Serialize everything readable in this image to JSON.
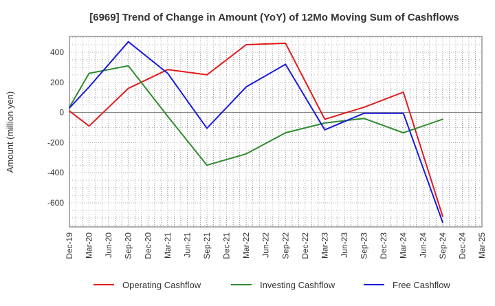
{
  "chart_data": {
    "type": "line",
    "title": "[6969]  Trend of Change in Amount (YoY) of 12Mo Moving Sum of Cashflows",
    "xlabel": "",
    "ylabel": "Amount (million yen)",
    "categories": [
      "Dec-19",
      "Mar-20",
      "Jun-20",
      "Sep-20",
      "Dec-20",
      "Mar-21",
      "Jun-21",
      "Sep-21",
      "Dec-21",
      "Mar-22",
      "Jun-22",
      "Sep-22",
      "Dec-22",
      "Mar-23",
      "Jun-23",
      "Sep-23",
      "Dec-23",
      "Mar-24",
      "Jun-24",
      "Sep-24",
      "Dec-24",
      "Mar-25"
    ],
    "ylim": [
      -760,
      505
    ],
    "yticks": [
      400,
      200,
      0,
      -200,
      -400,
      -600
    ],
    "ytick_labels": [
      "400",
      "200",
      "0",
      "-200",
      "-400",
      "-600"
    ],
    "grid": true,
    "legend_position": "bottom",
    "series": [
      {
        "name": "Operating Cashflow",
        "color": "#e31a1c",
        "values": [
          10,
          -90,
          null,
          160,
          null,
          285,
          null,
          250,
          null,
          450,
          null,
          460,
          null,
          -45,
          null,
          35,
          null,
          135,
          null,
          -690,
          null,
          null
        ]
      },
      {
        "name": "Investing Cashflow",
        "color": "#2e8b2e",
        "values": [
          35,
          260,
          null,
          310,
          null,
          -25,
          null,
          -350,
          null,
          -275,
          null,
          -135,
          null,
          -70,
          null,
          -40,
          null,
          -135,
          null,
          -45,
          null,
          null
        ]
      },
      {
        "name": "Free Cashflow",
        "color": "#1a1adb",
        "values": [
          30,
          170,
          null,
          470,
          null,
          260,
          null,
          -105,
          null,
          170,
          null,
          320,
          null,
          -115,
          null,
          -5,
          null,
          -5,
          null,
          -730,
          null,
          null
        ]
      }
    ]
  }
}
